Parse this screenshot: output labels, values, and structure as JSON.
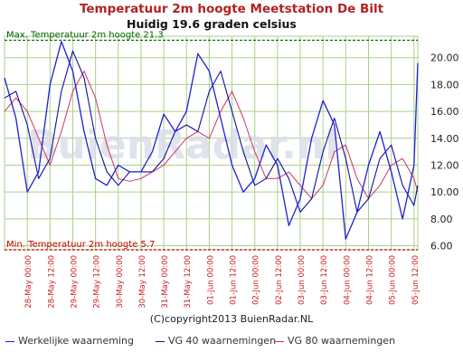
{
  "header": {
    "title": "Temperatuur 2m hoogte Meetstation De Bilt",
    "subtitle": "Huidig 19.6 graden celsius"
  },
  "copyright": "(C)copyright2013 BuienRadar.NL",
  "watermark": "BuienRadar.nl",
  "colors": {
    "actual": "#1f1fd6",
    "vg40": "#1010a0",
    "vg80": "#cc3366",
    "grid": "#a8d08a",
    "title": "#b22222",
    "xlabels": "#cc2222",
    "max_line": "#006400",
    "min_line": "#cc0000"
  },
  "chart_data": {
    "type": "line",
    "title": "Temperatuur 2m hoogte Meetstation De Bilt",
    "max_label": "Max. Temperatuur 2m hoogte 21.3",
    "min_label": "Min. Temperatuur 2m hoogte 5.7",
    "max_value": 21.3,
    "min_value": 5.7,
    "ylim": [
      5.7,
      21.6
    ],
    "yticks": [
      6.0,
      8.0,
      10.0,
      12.0,
      14.0,
      16.0,
      18.0,
      20.0
    ],
    "ytick_labels": [
      "6.00",
      "8.00",
      "10.00",
      "12.00",
      "14.00",
      "16.00",
      "18.00",
      "20.00"
    ],
    "xlim": [
      0,
      218
    ],
    "xticks": [
      12,
      24,
      36,
      48,
      60,
      72,
      84,
      96,
      108,
      120,
      132,
      144,
      156,
      168,
      180,
      192,
      204,
      216
    ],
    "xtick_labels": [
      "28-May 00:00",
      "28-May 12:00",
      "29-May 00:00",
      "29-May 12:00",
      "30-May 00:00",
      "30-May 12:00",
      "31-May 00:00",
      "31-May 12:00",
      "01-Jun 00:00",
      "01-Jun 12:00",
      "02-Jun 00:00",
      "02-Jun 12:00",
      "03-Jun 00:00",
      "03-Jun 12:00",
      "04-Jun 00:00",
      "04-Jun 12:00",
      "05-Jun 00:00",
      "05-Jun 12:00"
    ],
    "x": [
      0,
      6,
      12,
      18,
      24,
      30,
      36,
      42,
      48,
      54,
      60,
      66,
      72,
      78,
      84,
      90,
      96,
      102,
      108,
      114,
      120,
      126,
      132,
      138,
      144,
      150,
      156,
      162,
      168,
      174,
      180,
      186,
      192,
      198,
      204,
      210,
      216,
      218
    ],
    "series": [
      {
        "name": "Werkelijke waarneming",
        "values": [
          18.5,
          15.5,
          10.0,
          11.5,
          18.0,
          21.2,
          19.0,
          14.5,
          11.0,
          10.5,
          12.0,
          11.5,
          11.5,
          13.0,
          15.8,
          14.5,
          16.0,
          20.3,
          19.0,
          15.5,
          12.0,
          10.0,
          11.0,
          13.5,
          12.0,
          7.5,
          9.5,
          14.0,
          16.8,
          15.0,
          6.5,
          8.5,
          12.0,
          14.5,
          11.5,
          8.0,
          12.0,
          19.6
        ]
      },
      {
        "name": "VG 40 waarnemingen",
        "values": [
          17.0,
          17.5,
          15.0,
          11.0,
          12.5,
          17.5,
          20.5,
          18.5,
          14.0,
          11.5,
          10.5,
          11.5,
          11.5,
          11.5,
          12.5,
          14.5,
          15.0,
          14.5,
          17.5,
          19.0,
          16.0,
          13.0,
          10.5,
          11.0,
          12.5,
          11.0,
          8.5,
          9.5,
          13.0,
          15.5,
          12.5,
          8.5,
          9.5,
          12.5,
          13.5,
          10.5,
          9.0,
          10.5
        ]
      },
      {
        "name": "VG 80 waarnemingen",
        "values": [
          16.0,
          17.0,
          16.0,
          14.0,
          12.0,
          14.5,
          17.5,
          19.0,
          17.0,
          13.5,
          11.0,
          10.8,
          11.0,
          11.5,
          12.0,
          13.0,
          14.0,
          14.5,
          14.0,
          16.0,
          17.5,
          15.5,
          13.0,
          11.0,
          11.0,
          11.5,
          10.5,
          9.5,
          10.5,
          13.0,
          13.5,
          11.0,
          9.5,
          10.5,
          12.0,
          12.5,
          11.0,
          10.0
        ]
      }
    ],
    "grid": true,
    "legend_position": "bottom"
  }
}
